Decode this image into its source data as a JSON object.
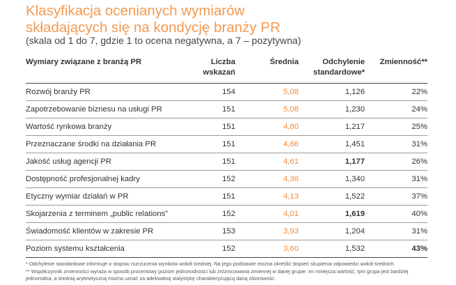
{
  "title": {
    "line1": "Klasyfikacja ocenianych wymiarów",
    "line2": "składających się na kondycję branży PR"
  },
  "subtitle": "(skala od 1 do 7, gdzie 1 to ocena negatywna, a 7 – pozytywna)",
  "colors": {
    "accent": "#f39a52",
    "mean_value": "#ee8b3f"
  },
  "table": {
    "headers": {
      "dimension": "Wymiary związane z branżą PR",
      "count_line1": "Liczba",
      "count_line2": "wskazań",
      "mean": "Średnia",
      "sd_line1": "Odchylenie",
      "sd_line2": "standardowe*",
      "variability": "Zmienność**"
    },
    "rows": [
      {
        "dimension": "Rozwój branży PR",
        "count": "154",
        "mean": "5,08",
        "sd": "1,126",
        "variability": "22%"
      },
      {
        "dimension": "Zapotrzebowanie biznesu na usługi PR",
        "count": "151",
        "mean": "5,08",
        "sd": "1,230",
        "variability": "24%"
      },
      {
        "dimension": "Wartość rynkowa branży",
        "count": "151",
        "mean": "4,80",
        "sd": "1,217",
        "variability": "25%"
      },
      {
        "dimension": "Przeznaczane środki na działania PR",
        "count": "151",
        "mean": "4,66",
        "sd": "1,451",
        "variability": "31%"
      },
      {
        "dimension": "Jakość usług agencji PR",
        "count": "151",
        "mean": "4,61",
        "sd": "1,177",
        "variability": "26%"
      },
      {
        "dimension": "Dostępność profesjonalnej kadry",
        "count": "152",
        "mean": "4,36",
        "sd": "1,340",
        "variability": "31%"
      },
      {
        "dimension": "Etyczny wymiar działań w PR",
        "count": "151",
        "mean": "4,13",
        "sd": "1,522",
        "variability": "37%"
      },
      {
        "dimension": "Skojarzenia z terminem „public relations”",
        "count": "152",
        "mean": "4,01",
        "sd": "1,619",
        "variability": "40%"
      },
      {
        "dimension": "Świadomość klientów w zakresie PR",
        "count": "153",
        "mean": "3,93",
        "sd": "1,204",
        "variability": "31%"
      },
      {
        "dimension": "Poziom systemu kształcenia",
        "count": "152",
        "mean": "3,60",
        "sd": "1,532",
        "variability": "43%"
      }
    ]
  },
  "footnotes": {
    "sd_note": "* Odchylenie standardowe informuje o stopniu rozrzucenia wyników wokół średniej. Na jego podstawie można określić stopień skupienia odpowiedzi wokół średnich.",
    "var_note": "** Współczynnik zmienności wyraża w sposób procentowy poziom jednorodności lub zróżnicowania zmiennej w danej grupie. Im mniejsza wartość, tym grupa jest bardziej jednorodna, a średnią arytmetyczną można uznać za adekwatną statystykę charakteryzującą daną zbiorowość."
  }
}
